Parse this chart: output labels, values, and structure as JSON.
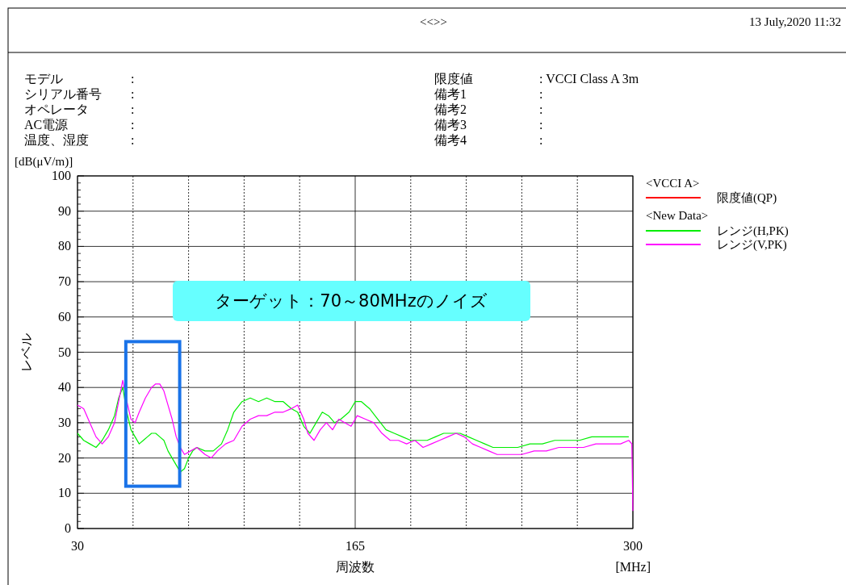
{
  "chart_data": {
    "type": "line",
    "title": "<<>>",
    "xlabel": "周波数",
    "ylabel": "レベル",
    "xlim": [
      30,
      300
    ],
    "ylim": [
      0,
      100
    ],
    "xticks": [
      30,
      {
        "value": 57,
        "label": null
      },
      {
        "value": 84,
        "label": null
      },
      {
        "value": 111,
        "label": null
      },
      {
        "value": 138,
        "label": null
      },
      165,
      {
        "value": 192,
        "label": null
      },
      {
        "value": 219,
        "label": null
      },
      {
        "value": 246,
        "label": null
      },
      {
        "value": 273,
        "label": null
      },
      300
    ],
    "yticks": [
      0,
      10,
      20,
      30,
      40,
      50,
      60,
      70,
      80,
      90,
      100
    ],
    "grid": true,
    "legend": "right",
    "line_style": "solid",
    "annotations": [
      "モデル",
      "シリアル番号",
      "オペレータ",
      "AC電源",
      "温度、湿度",
      ":",
      ":",
      ":",
      ":",
      ":",
      "限度値",
      "備考1",
      "備考2",
      "備考3",
      "備考4",
      ": VCCI Class A 3m",
      ":",
      ":",
      ":",
      ":",
      "13 July,2020 11:32",
      "ターゲット：70～80MHzのノイズ",
      "[dB(μV/m)]",
      "[MHz]",
      "<VCCI A>",
      "<New Data>"
    ],
    "series": [
      {
        "name": "限度値(QP)",
        "color": "#ff0000"
      },
      {
        "name": "レンジ(H,PK)",
        "color": "#00ee00",
        "x": [
          30,
          33,
          36,
          39,
          42,
          45,
          48,
          50,
          52,
          54,
          56,
          58,
          60,
          62,
          64,
          66,
          68,
          70,
          72,
          74,
          76,
          78,
          80,
          82,
          84,
          86,
          88,
          92,
          96,
          100,
          103,
          106,
          110,
          114,
          118,
          122,
          126,
          130,
          134,
          137,
          140,
          143,
          146,
          149,
          152,
          155,
          158,
          162,
          165,
          168,
          172,
          176,
          180,
          184,
          188,
          192,
          196,
          200,
          204,
          208,
          212,
          216,
          220,
          224,
          228,
          232,
          238,
          244,
          250,
          256,
          262,
          268,
          274,
          280,
          286,
          292,
          298
        ],
        "values": [
          27,
          25,
          24,
          23,
          25,
          28,
          32,
          37,
          40,
          33,
          28,
          26,
          24,
          25,
          26,
          27,
          27,
          26,
          25,
          22,
          20,
          18,
          16,
          17,
          20,
          22,
          23,
          22,
          22,
          24,
          28,
          33,
          36,
          37,
          36,
          37,
          36,
          36,
          34,
          33,
          29,
          27,
          30,
          33,
          32,
          30,
          31,
          33,
          36,
          36,
          34,
          31,
          28,
          27,
          26,
          25,
          25,
          25,
          26,
          27,
          27,
          27,
          26,
          25,
          24,
          23,
          23,
          23,
          24,
          24,
          25,
          25,
          25,
          26,
          26,
          26,
          26
        ]
      },
      {
        "name": "レンジ(V,PK)",
        "color": "#ff00ff",
        "x": [
          30,
          33,
          36,
          39,
          42,
          45,
          48,
          50,
          52,
          54,
          56,
          58,
          60,
          63,
          66,
          68,
          70,
          72,
          74,
          76,
          78,
          80,
          82,
          85,
          88,
          92,
          95,
          98,
          102,
          106,
          110,
          114,
          118,
          122,
          126,
          130,
          134,
          137,
          140,
          142,
          145,
          148,
          151,
          154,
          157,
          160,
          163,
          166,
          170,
          174,
          178,
          182,
          186,
          190,
          194,
          198,
          202,
          206,
          210,
          214,
          218,
          222,
          226,
          230,
          234,
          240,
          246,
          252,
          258,
          264,
          270,
          276,
          282,
          288,
          294,
          298,
          299.5,
          300
        ],
        "values": [
          35,
          34,
          30,
          26,
          24,
          26,
          30,
          36,
          42,
          36,
          31,
          30,
          33,
          37,
          40,
          41,
          41,
          39,
          35,
          31,
          26,
          23,
          21,
          22,
          23,
          21,
          20,
          22,
          24,
          25,
          29,
          31,
          32,
          32,
          33,
          33,
          34,
          35,
          31,
          27,
          25,
          28,
          30,
          28,
          31,
          30,
          29,
          32,
          31,
          30,
          27,
          25,
          25,
          24,
          25,
          23,
          24,
          25,
          26,
          27,
          26,
          24,
          23,
          22,
          21,
          21,
          21,
          22,
          22,
          23,
          23,
          23,
          24,
          24,
          24,
          25,
          24,
          5
        ]
      }
    ]
  }
}
